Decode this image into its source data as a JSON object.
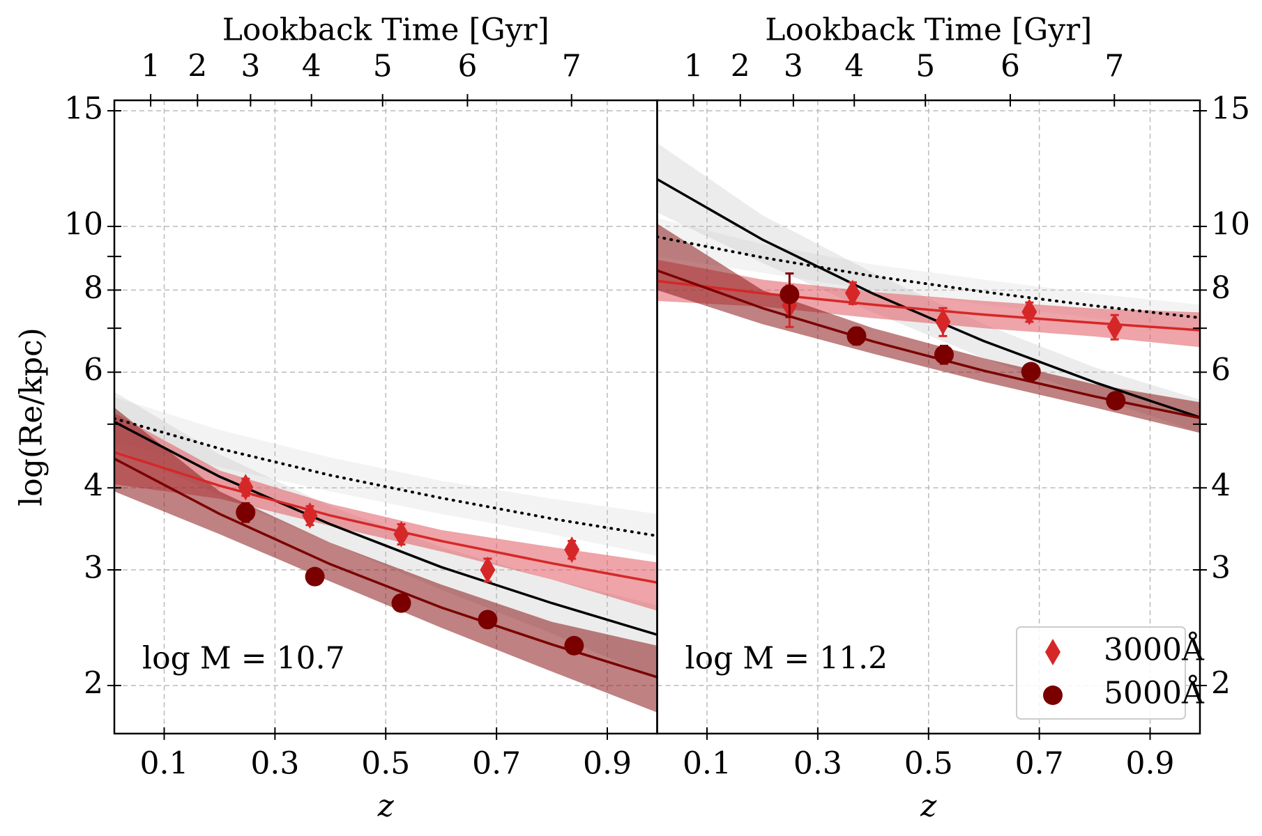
{
  "chart_data": [
    {
      "type": "line",
      "annotation": "log M = 10.7",
      "xlabel": "z",
      "x2label": "Lookback Time [Gyr]",
      "ylabel": "log(Re/kpc)",
      "xlim": [
        0.01,
        0.99
      ],
      "xticks": [
        0.1,
        0.3,
        0.5,
        0.7,
        0.9
      ],
      "x2ticks": [
        1,
        2,
        3,
        4,
        5,
        6,
        7
      ],
      "ylim": [
        1.69,
        15.56
      ],
      "yticks": [
        2,
        3,
        4,
        6,
        8,
        10,
        15
      ],
      "yminor": [
        5,
        7,
        9
      ],
      "log_y": true,
      "grid": true,
      "yaxis": "left",
      "fits": [
        {
          "style": "dotted",
          "color": "#000000",
          "band_color": "#bbbbbb",
          "x": [
            0.01,
            0.2,
            0.4,
            0.6,
            0.8,
            0.99
          ],
          "values": [
            5.1,
            4.59,
            4.18,
            3.86,
            3.59,
            3.38
          ],
          "lower": [
            4.7,
            4.3,
            3.95,
            3.65,
            3.4,
            3.15
          ],
          "upper": [
            5.5,
            4.9,
            4.45,
            4.1,
            3.85,
            3.65
          ]
        },
        {
          "style": "solid",
          "color": "#000000",
          "band_color": "#bbbbbb",
          "x": [
            0.01,
            0.2,
            0.4,
            0.6,
            0.8,
            0.99
          ],
          "values": [
            5.04,
            4.16,
            3.52,
            3.03,
            2.67,
            2.39
          ],
          "lower": [
            4.6,
            3.9,
            3.3,
            2.8,
            2.4,
            2.05
          ],
          "upper": [
            5.6,
            4.5,
            3.75,
            3.25,
            2.9,
            2.65
          ]
        },
        {
          "style": "solid",
          "color": "#d62728",
          "band_color": "#e05a60",
          "x": [
            0.01,
            0.2,
            0.4,
            0.6,
            0.8,
            0.99
          ],
          "values": [
            4.53,
            4.03,
            3.63,
            3.32,
            3.07,
            2.87
          ],
          "lower": [
            4.05,
            3.85,
            3.5,
            3.2,
            2.9,
            2.6
          ],
          "upper": [
            5.2,
            4.25,
            3.78,
            3.45,
            3.25,
            3.08
          ]
        },
        {
          "style": "solid",
          "color": "#7a0000",
          "band_color": "#8b1a1a",
          "x": [
            0.01,
            0.2,
            0.4,
            0.6,
            0.8,
            0.99
          ],
          "values": [
            4.43,
            3.65,
            3.06,
            2.63,
            2.31,
            2.06
          ],
          "lower": [
            3.95,
            3.4,
            2.88,
            2.45,
            2.1,
            1.82
          ],
          "upper": [
            5.3,
            3.95,
            3.3,
            2.85,
            2.5,
            2.3
          ]
        }
      ],
      "series": [
        {
          "name": "3000Å",
          "color": "#d62728",
          "marker": "diamond",
          "x": [
            0.247,
            0.363,
            0.528,
            0.684,
            0.836
          ],
          "values": [
            4.01,
            3.63,
            3.4,
            3.0,
            3.22
          ],
          "errors": [
            0.12,
            0.12,
            0.12,
            0.12,
            0.1
          ]
        },
        {
          "name": "5000Å",
          "color": "#7a0000",
          "marker": "circle",
          "x": [
            0.247,
            0.372,
            0.528,
            0.684,
            0.84
          ],
          "values": [
            3.67,
            2.93,
            2.67,
            2.52,
            2.3
          ],
          "errors": [
            0.12,
            0.08,
            0.06,
            0.06,
            0.05
          ]
        }
      ]
    },
    {
      "type": "line",
      "annotation": "log M = 11.2",
      "xlabel": "z",
      "x2label": "Lookback Time [Gyr]",
      "xlim": [
        0.01,
        0.99
      ],
      "xticks": [
        0.1,
        0.3,
        0.5,
        0.7,
        0.9
      ],
      "x2ticks": [
        1,
        2,
        3,
        4,
        5,
        6,
        7
      ],
      "ylim": [
        1.69,
        15.56
      ],
      "yticks": [
        2,
        3,
        4,
        6,
        8,
        10,
        15
      ],
      "yminor": [
        5,
        7,
        9
      ],
      "log_y": true,
      "grid": true,
      "yaxis": "right",
      "legend": "lower right",
      "fits": [
        {
          "style": "dotted",
          "color": "#000000",
          "band_color": "#bbbbbb",
          "x": [
            0.01,
            0.2,
            0.4,
            0.6,
            0.8,
            0.99
          ],
          "values": [
            9.64,
            8.97,
            8.4,
            7.95,
            7.57,
            7.26
          ],
          "lower": [
            9.0,
            8.5,
            8.0,
            7.6,
            7.25,
            6.9
          ],
          "upper": [
            10.3,
            9.4,
            8.75,
            8.3,
            7.9,
            7.6
          ]
        },
        {
          "style": "solid",
          "color": "#000000",
          "band_color": "#bbbbbb",
          "x": [
            0.01,
            0.2,
            0.4,
            0.6,
            0.8,
            0.99
          ],
          "values": [
            11.8,
            9.55,
            7.9,
            6.69,
            5.79,
            5.12
          ],
          "lower": [
            10.5,
            8.8,
            7.4,
            6.3,
            5.5,
            4.85
          ],
          "upper": [
            13.4,
            10.4,
            8.5,
            7.1,
            6.1,
            5.45
          ]
        },
        {
          "style": "solid",
          "color": "#d62728",
          "band_color": "#e05a60",
          "x": [
            0.01,
            0.2,
            0.4,
            0.6,
            0.8,
            0.99
          ],
          "values": [
            8.26,
            7.91,
            7.6,
            7.34,
            7.13,
            6.95
          ],
          "lower": [
            7.7,
            7.55,
            7.25,
            7.0,
            6.8,
            6.55
          ],
          "upper": [
            8.9,
            8.3,
            7.95,
            7.7,
            7.5,
            7.4
          ]
        },
        {
          "style": "solid",
          "color": "#7a0000",
          "band_color": "#8b1a1a",
          "x": [
            0.01,
            0.2,
            0.4,
            0.6,
            0.8,
            0.99
          ],
          "values": [
            8.57,
            7.51,
            6.68,
            6.03,
            5.51,
            5.11
          ],
          "lower": [
            8.0,
            7.1,
            6.4,
            5.8,
            5.3,
            4.85
          ],
          "upper": [
            10.1,
            8.0,
            7.0,
            6.3,
            5.75,
            5.4
          ]
        }
      ],
      "series": [
        {
          "name": "3000Å",
          "color": "#d62728",
          "marker": "diamond",
          "x": [
            0.249,
            0.363,
            0.526,
            0.682,
            0.836
          ],
          "values": [
            7.58,
            7.92,
            7.16,
            7.41,
            7.03
          ],
          "errors": [
            0.55,
            0.3,
            0.35,
            0.25,
            0.3
          ]
        },
        {
          "name": "5000Å",
          "color": "#7a0000",
          "marker": "circle",
          "x": [
            0.249,
            0.37,
            0.528,
            0.685,
            0.838
          ],
          "values": [
            7.88,
            6.81,
            6.38,
            6.01,
            5.43
          ],
          "errors": [
            0.6,
            0.2,
            0.2,
            0.1,
            0.1
          ]
        }
      ]
    }
  ]
}
